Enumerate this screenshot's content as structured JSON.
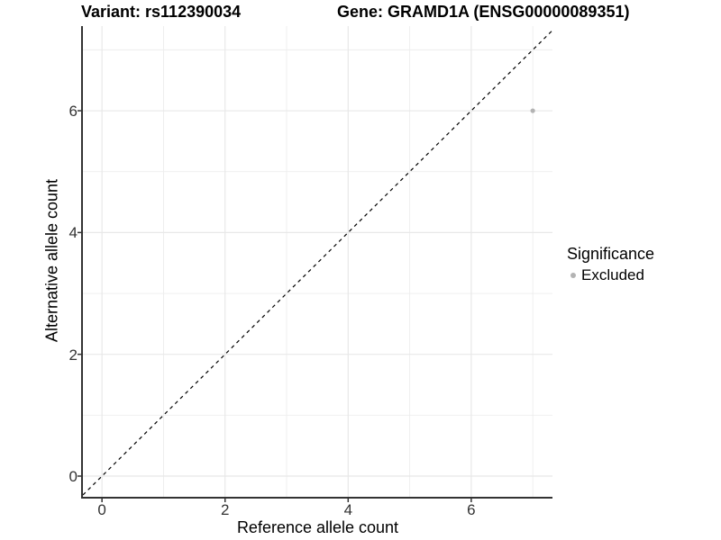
{
  "figure": {
    "title_left": "Variant: rs112390034",
    "title_right": "Gene: GRAMD1A (ENSG00000089351)"
  },
  "axes": {
    "x": {
      "label": "Reference allele count",
      "ticks": [
        "0",
        "2",
        "4",
        "6"
      ]
    },
    "y": {
      "label": "Alternative allele count",
      "ticks": [
        "0",
        "2",
        "4",
        "6"
      ]
    }
  },
  "legend": {
    "title": "Significance",
    "items": [
      {
        "label": "Excluded",
        "color": "#b3b3b3"
      }
    ]
  },
  "chart_data": {
    "type": "scatter",
    "title": "Variant: rs112390034 | Gene: GRAMD1A (ENSG00000089351)",
    "xlabel": "Reference allele count",
    "ylabel": "Alternative allele count",
    "xlim": [
      -0.31,
      7.32
    ],
    "ylim": [
      -0.34,
      7.39
    ],
    "x_major_ticks": [
      0,
      2,
      4,
      6
    ],
    "y_major_ticks": [
      0,
      2,
      4,
      6
    ],
    "x_minor_ticks": [
      1,
      3,
      5,
      7
    ],
    "y_minor_ticks": [
      1,
      3,
      5,
      7
    ],
    "grid": "on",
    "legend_position": "right",
    "series": [
      {
        "name": "Excluded",
        "color": "#b3b3b3",
        "point_radius": 2.6,
        "points": [
          [
            7,
            6
          ]
        ]
      }
    ],
    "reference_line": {
      "kind": "identity",
      "equation": "y = x",
      "style": "dashed",
      "color": "#000000"
    }
  },
  "colors": {
    "background": "#ffffff",
    "grid_major": "#e8e8e8",
    "grid_minor": "#ededed",
    "axis_line": "#333333",
    "tick_text": "#333333",
    "point": "#b3b3b3"
  }
}
